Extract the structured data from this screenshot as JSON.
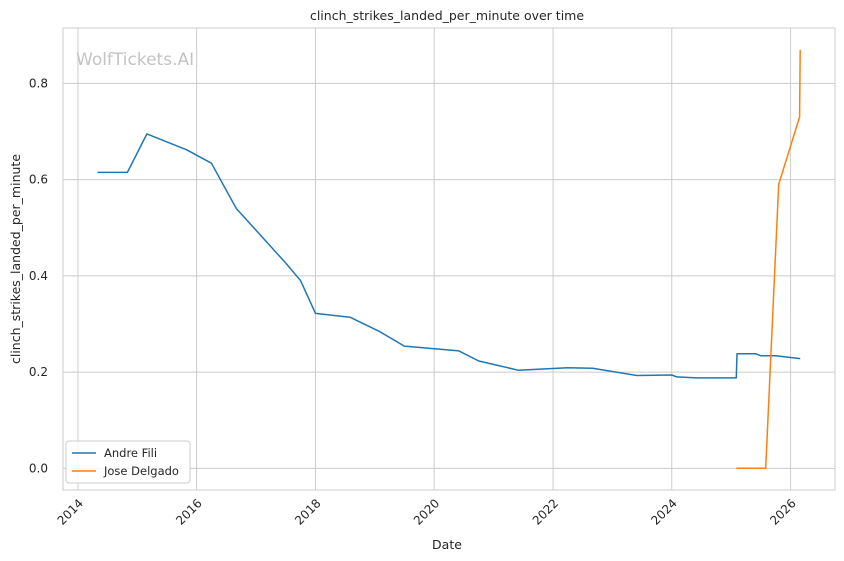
{
  "chart_data": {
    "type": "line",
    "title": "clinch_strikes_landed_per_minute over time",
    "xlabel": "Date",
    "ylabel": "clinch_strikes_landed_per_minute",
    "watermark": "WolfTickets.AI",
    "x_ticks": [
      "2014",
      "2016",
      "2018",
      "2020",
      "2022",
      "2024",
      "2026"
    ],
    "y_ticks": [
      "0.0",
      "0.2",
      "0.4",
      "0.6",
      "0.8"
    ],
    "xlim": [
      "2013-10-01",
      "2026-10-01"
    ],
    "ylim": [
      -0.045,
      0.915
    ],
    "grid": true,
    "legend_position": "lower-left",
    "series": [
      {
        "name": "Andre Fili",
        "color": "#1f77b4",
        "points": [
          [
            "2014-05-01",
            0.615
          ],
          [
            "2014-11-01",
            0.615
          ],
          [
            "2015-03-01",
            0.695
          ],
          [
            "2015-11-01",
            0.662
          ],
          [
            "2016-04-01",
            0.634
          ],
          [
            "2016-09-01",
            0.54
          ],
          [
            "2017-07-01",
            0.427
          ],
          [
            "2017-10-01",
            0.39
          ],
          [
            "2018-01-01",
            0.322
          ],
          [
            "2018-08-01",
            0.314
          ],
          [
            "2019-02-01",
            0.284
          ],
          [
            "2019-07-01",
            0.254
          ],
          [
            "2020-06-01",
            0.244
          ],
          [
            "2020-10-01",
            0.223
          ],
          [
            "2021-06-01",
            0.204
          ],
          [
            "2022-04-01",
            0.209
          ],
          [
            "2022-09-01",
            0.208
          ],
          [
            "2023-06-01",
            0.193
          ],
          [
            "2024-01-01",
            0.194
          ],
          [
            "2024-02-01",
            0.19
          ],
          [
            "2024-06-01",
            0.188
          ],
          [
            "2025-02-01",
            0.188
          ],
          [
            "2025-02-05",
            0.238
          ],
          [
            "2025-06-01",
            0.238
          ],
          [
            "2025-07-01",
            0.234
          ],
          [
            "2025-10-01",
            0.234
          ],
          [
            "2026-03-01",
            0.228
          ]
        ]
      },
      {
        "name": "Jose Delgado",
        "color": "#ff7f0e",
        "points": [
          [
            "2025-02-01",
            0.0
          ],
          [
            "2025-08-01",
            0.0
          ],
          [
            "2025-10-20",
            0.59
          ],
          [
            "2026-02-25",
            0.73
          ],
          [
            "2026-03-01",
            0.87
          ]
        ]
      }
    ]
  }
}
